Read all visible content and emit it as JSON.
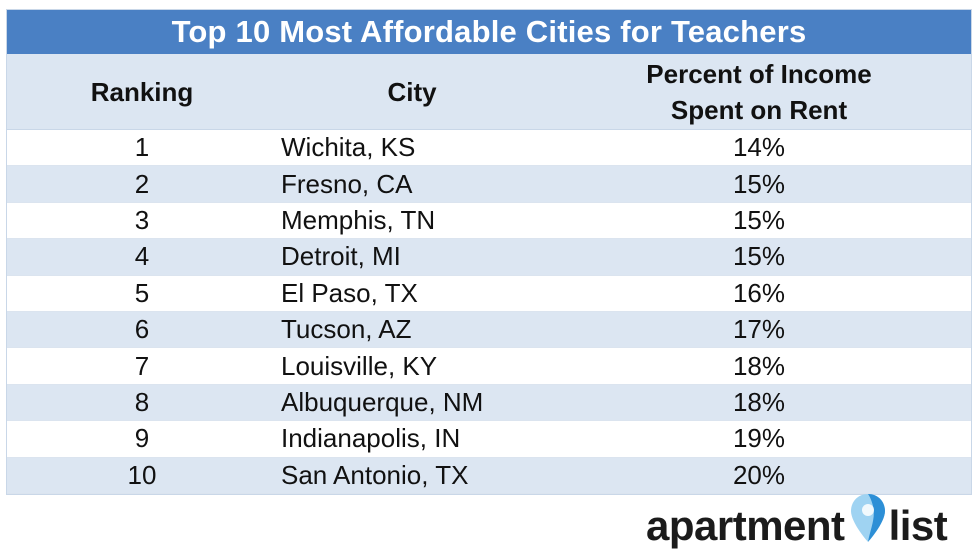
{
  "chart_data": {
    "type": "table",
    "title": "Top 10 Most Affordable Cities for Teachers",
    "columns": [
      "Ranking",
      "City",
      "Percent of Income Spent on Rent"
    ],
    "rows": [
      {
        "ranking": "1",
        "city": "Wichita, KS",
        "percent": "14%"
      },
      {
        "ranking": "2",
        "city": "Fresno, CA",
        "percent": "15%"
      },
      {
        "ranking": "3",
        "city": "Memphis, TN",
        "percent": "15%"
      },
      {
        "ranking": "4",
        "city": "Detroit, MI",
        "percent": "15%"
      },
      {
        "ranking": "5",
        "city": "El Paso, TX",
        "percent": "16%"
      },
      {
        "ranking": "6",
        "city": "Tucson, AZ",
        "percent": "17%"
      },
      {
        "ranking": "7",
        "city": "Louisville, KY",
        "percent": "18%"
      },
      {
        "ranking": "8",
        "city": "Albuquerque, NM",
        "percent": "18%"
      },
      {
        "ranking": "9",
        "city": "Indianapolis, IN",
        "percent": "19%"
      },
      {
        "ranking": "10",
        "city": "San Antonio, TX",
        "percent": "20%"
      }
    ]
  },
  "header": {
    "percent_line1": "Percent of Income",
    "percent_line2": "Spent on Rent"
  },
  "logo": {
    "text_left": "apartment",
    "text_right": "list",
    "icon": "map-pin-icon"
  },
  "colors": {
    "title_bar": "#4a80c4",
    "stripe": "#dce6f2",
    "pin_light": "#9fd3f2",
    "pin_dark": "#2d8fd6"
  }
}
